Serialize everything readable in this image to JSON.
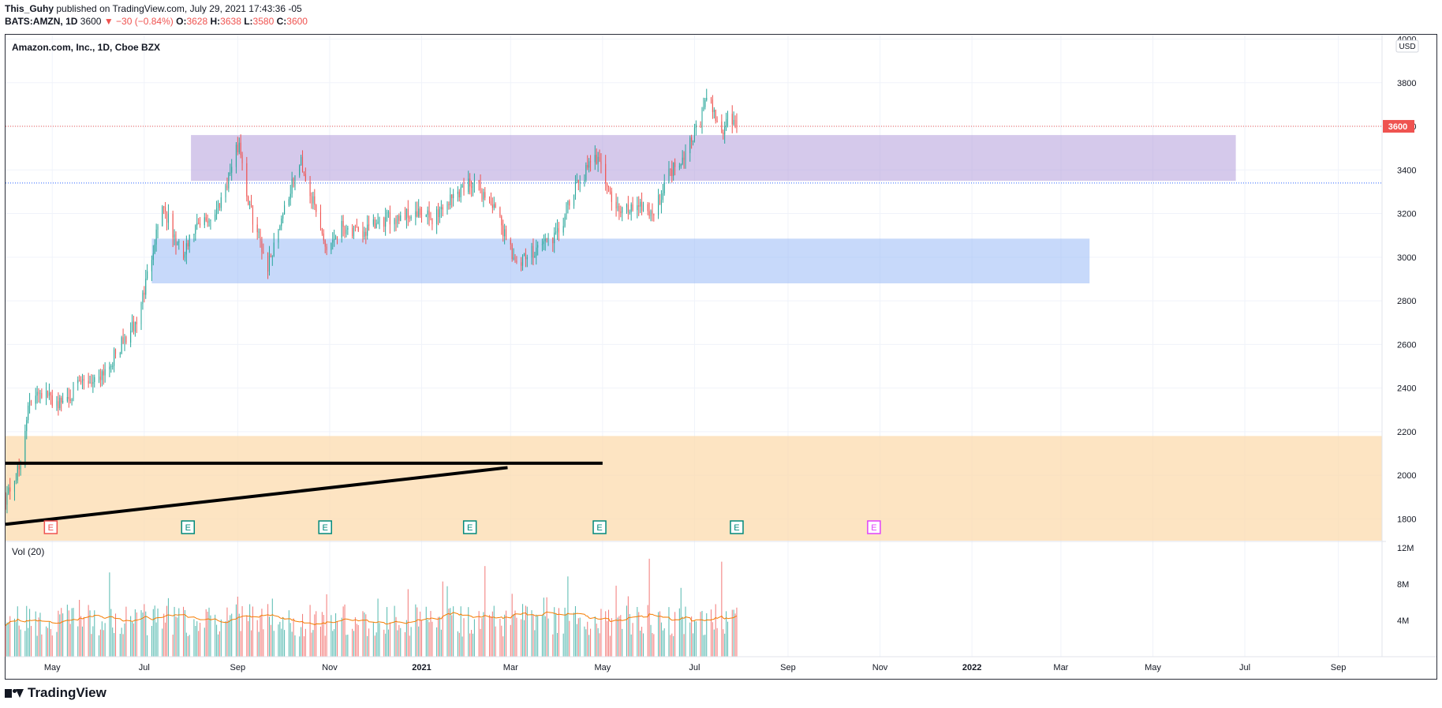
{
  "header": {
    "author": "This_Guhy",
    "published_text": "published on TradingView.com, July 29, 2021 17:43:36 -05",
    "symbol": "BATS:AMZN, 1D",
    "last": "3600",
    "change": "▼ −30 (−0.84%)",
    "o_label": "O:",
    "o_value": "3628",
    "h_label": "H:",
    "h_value": "3638",
    "l_label": "L:",
    "l_value": "3580",
    "c_label": "C:",
    "c_value": "3600"
  },
  "footer": {
    "brand": "TradingView"
  },
  "colors": {
    "up": "#26a69a",
    "down": "#ef5350",
    "volume_ma": "#f57c00",
    "purple_zone": "#b39ddb",
    "blue_zone": "#90b4f5",
    "orange_zone": "#fcd9a8"
  },
  "chart_data": {
    "type": "candlestick",
    "title": "Amazon.com, Inc., 1D, Cboe BZX",
    "currency": "USD",
    "y_ticks": [
      1800,
      2000,
      2200,
      2400,
      2600,
      2800,
      3000,
      3200,
      3400,
      3600,
      3800,
      4000
    ],
    "ylim": [
      1700,
      4020
    ],
    "x_ticks": [
      "May",
      "Jul",
      "Sep",
      "Nov",
      "2021",
      "Mar",
      "May",
      "Jul",
      "Sep",
      "Nov",
      "2022",
      "Mar",
      "May",
      "Jul",
      "Sep"
    ],
    "x_range": [
      "2020-03-31",
      "2022-09-30"
    ],
    "last_price": 3600,
    "last_price_label": "3600",
    "dotted_level": 3340,
    "zones": [
      {
        "name": "purple-zone",
        "low": 3350,
        "high": 3560,
        "start": "2020-08-01",
        "end": "2022-06-25"
      },
      {
        "name": "blue-zone",
        "low": 2880,
        "high": 3085,
        "start": "2020-07-06",
        "end": "2022-03-20"
      },
      {
        "name": "orange-zone",
        "low": 1700,
        "high": 2180,
        "start": "2020-03-31",
        "end": "2022-09-30"
      }
    ],
    "trend_lines": [
      {
        "start_date": "2020-03-31",
        "start_value": 2055,
        "end_date": "2021-05-01",
        "end_value": 2055
      },
      {
        "start_date": "2020-03-31",
        "start_value": 1775,
        "end_date": "2021-02-27",
        "end_value": 2035
      }
    ],
    "price_path": [
      [
        "2020-03-31",
        1900
      ],
      [
        "2020-04-10",
        2040
      ],
      [
        "2020-04-14",
        2280
      ],
      [
        "2020-04-21",
        2400
      ],
      [
        "2020-04-30",
        2350
      ],
      [
        "2020-05-06",
        2330
      ],
      [
        "2020-05-20",
        2420
      ],
      [
        "2020-05-29",
        2440
      ],
      [
        "2020-06-08",
        2510
      ],
      [
        "2020-06-18",
        2620
      ],
      [
        "2020-06-26",
        2700
      ],
      [
        "2020-07-02",
        2880
      ],
      [
        "2020-07-07",
        3050
      ],
      [
        "2020-07-13",
        3250
      ],
      [
        "2020-07-20",
        3100
      ],
      [
        "2020-07-27",
        3000
      ],
      [
        "2020-08-03",
        3120
      ],
      [
        "2020-08-17",
        3200
      ],
      [
        "2020-08-25",
        3350
      ],
      [
        "2020-09-02",
        3530
      ],
      [
        "2020-09-08",
        3250
      ],
      [
        "2020-09-21",
        2960
      ],
      [
        "2020-10-01",
        3210
      ],
      [
        "2020-10-13",
        3440
      ],
      [
        "2020-10-20",
        3270
      ],
      [
        "2020-10-30",
        3040
      ],
      [
        "2020-11-09",
        3150
      ],
      [
        "2020-11-20",
        3100
      ],
      [
        "2020-12-08",
        3170
      ],
      [
        "2020-12-22",
        3200
      ],
      [
        "2021-01-08",
        3180
      ],
      [
        "2021-01-25",
        3300
      ],
      [
        "2021-02-03",
        3350
      ],
      [
        "2021-02-16",
        3250
      ],
      [
        "2021-03-01",
        3050
      ],
      [
        "2021-03-05",
        2950
      ],
      [
        "2021-03-20",
        3060
      ],
      [
        "2021-04-01",
        3100
      ],
      [
        "2021-04-15",
        3350
      ],
      [
        "2021-04-29",
        3470
      ],
      [
        "2021-05-05",
        3300
      ],
      [
        "2021-05-12",
        3200
      ],
      [
        "2021-05-25",
        3250
      ],
      [
        "2021-06-04",
        3200
      ],
      [
        "2021-06-15",
        3400
      ],
      [
        "2021-06-22",
        3450
      ],
      [
        "2021-07-06",
        3650
      ],
      [
        "2021-07-08",
        3720
      ],
      [
        "2021-07-13",
        3680
      ],
      [
        "2021-07-19",
        3560
      ],
      [
        "2021-07-23",
        3650
      ],
      [
        "2021-07-29",
        3600
      ]
    ],
    "earnings_markers": [
      {
        "date": "2020-04-30",
        "status": "past-beat-miss"
      },
      {
        "date": "2020-07-30",
        "status": "past"
      },
      {
        "date": "2020-10-29",
        "status": "past"
      },
      {
        "date": "2021-02-02",
        "status": "past"
      },
      {
        "date": "2021-04-29",
        "status": "past"
      },
      {
        "date": "2021-07-29",
        "status": "past"
      },
      {
        "date": "2021-10-28",
        "status": "upcoming"
      }
    ],
    "volume": {
      "label": "Vol (20)",
      "y_ticks": [
        "4M",
        "8M",
        "12M"
      ],
      "ylim": [
        0,
        12500000
      ],
      "start": "2020-03-31",
      "end": "2021-07-29",
      "typical": 4000000,
      "max": 12000000
    }
  }
}
